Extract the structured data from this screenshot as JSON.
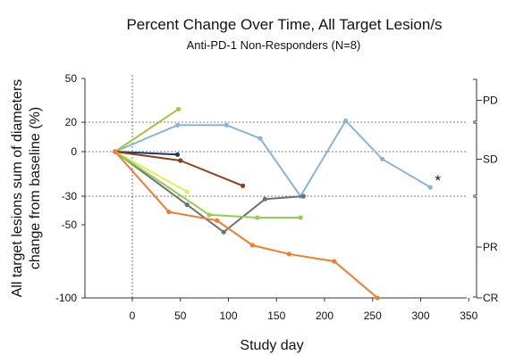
{
  "chart_data": {
    "type": "line",
    "title": "Percent Change Over Time, All Target Lesion/s",
    "subtitle": "Anti-PD-1 Non-Responders (N=8)",
    "xlabel": "Study day",
    "ylabel_lines": [
      "All target lesions sum of diameters",
      "change from baseline (%)"
    ],
    "xlim": [
      -50,
      350
    ],
    "ylim": [
      -100,
      50
    ],
    "x_ticks": [
      0,
      50,
      100,
      150,
      200,
      250,
      300,
      350
    ],
    "y_ticks": [
      50,
      20,
      0,
      -30,
      -50,
      -100
    ],
    "reference_lines_y": [
      20,
      0,
      -30
    ],
    "reference_line_x": 0,
    "response_categories": [
      {
        "label": "PD",
        "from": 50,
        "to": 20
      },
      {
        "label": "SD",
        "from": 20,
        "to": -30
      },
      {
        "label": "PR",
        "from": -30,
        "to": -100
      },
      {
        "label": "CR",
        "from": -100,
        "to": -100
      }
    ],
    "annotation": {
      "text": "*",
      "x": 318,
      "y": -18
    },
    "series": [
      {
        "color": "#8ab4d6",
        "points": [
          [
            -18,
            0
          ],
          [
            47,
            18
          ],
          [
            98,
            18
          ],
          [
            133,
            9
          ],
          [
            175,
            -30
          ],
          [
            222,
            21
          ],
          [
            260,
            -5
          ],
          [
            310,
            -24
          ]
        ]
      },
      {
        "color": "#a8c23a",
        "points": [
          [
            -18,
            0
          ],
          [
            48,
            29
          ]
        ]
      },
      {
        "color": "#1f3a73",
        "points": [
          [
            -18,
            0
          ],
          [
            47,
            -2
          ]
        ]
      },
      {
        "color": "#8b3e1a",
        "points": [
          [
            -18,
            0
          ],
          [
            50,
            -6
          ],
          [
            115,
            -23
          ]
        ]
      },
      {
        "color": "#e2ee5a",
        "points": [
          [
            -18,
            0
          ],
          [
            57,
            -27
          ]
        ]
      },
      {
        "color": "#707070",
        "points": [
          [
            -18,
            0
          ],
          [
            57,
            -36
          ],
          [
            95,
            -55
          ],
          [
            138,
            -32
          ],
          [
            178,
            -30
          ]
        ]
      },
      {
        "color": "#8fce52",
        "points": [
          [
            -18,
            0
          ],
          [
            80,
            -43
          ],
          [
            130,
            -45
          ],
          [
            175,
            -45
          ]
        ]
      },
      {
        "color": "#f07c32",
        "points": [
          [
            -18,
            0
          ],
          [
            38,
            -41
          ],
          [
            88,
            -47
          ],
          [
            125,
            -64
          ],
          [
            163,
            -70
          ],
          [
            210,
            -75
          ],
          [
            255,
            -100
          ]
        ]
      }
    ]
  }
}
